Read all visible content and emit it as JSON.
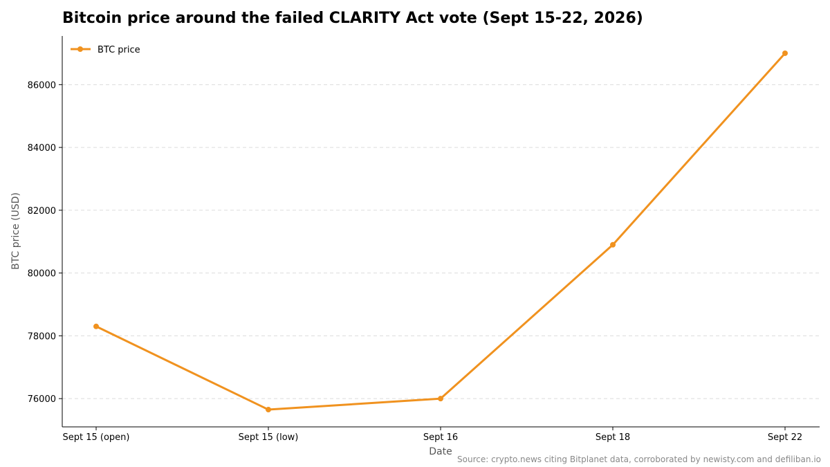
{
  "chart_data": {
    "type": "line",
    "title": "Bitcoin price around the failed CLARITY Act vote (Sept 15-22, 2026)",
    "xlabel": "Date",
    "ylabel": "BTC price (USD)",
    "categories": [
      "Sept 15 (open)",
      "Sept 15 (low)",
      "Sept 16",
      "Sept 18",
      "Sept 22"
    ],
    "series": [
      {
        "name": "BTC price",
        "values": [
          78300,
          75650,
          76000,
          80900,
          87000
        ],
        "color": "#f0921f"
      }
    ],
    "ylim": [
      75100,
      87550
    ],
    "yticks": [
      76000,
      78000,
      80000,
      82000,
      84000,
      86000
    ],
    "grid": "horizontal dashed",
    "legend": "top-left",
    "source": "Source: crypto.news citing Bitplanet data, corroborated by newisty.com and defiliban.io"
  }
}
